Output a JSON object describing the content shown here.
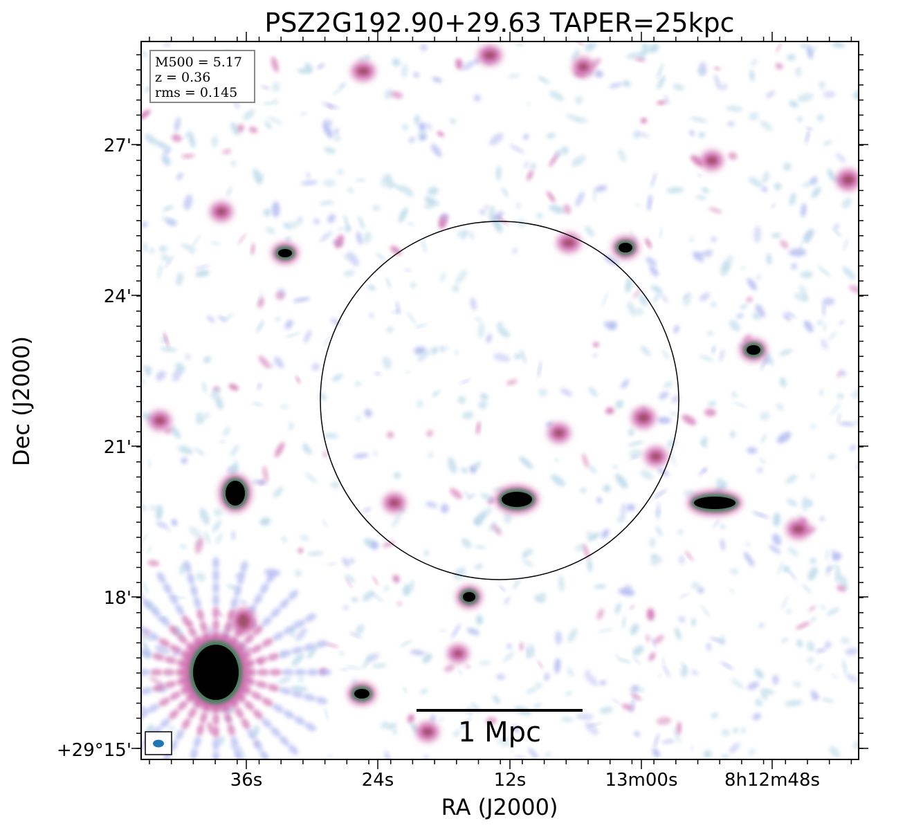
{
  "chart_data": {
    "type": "heatmap",
    "title": "PSZ2G192.90+29.63 TAPER=25kpc",
    "xlabel": "RA (J2000)",
    "ylabel": "Dec (J2000)",
    "x_ticks": [
      "36s",
      "24s",
      "12s",
      "13m00s",
      "8h12m48s"
    ],
    "y_ticks": [
      "+29°15'",
      "18'",
      "21'",
      "24'",
      "27'"
    ],
    "info_box": {
      "m500": "M500 = 5.17",
      "z": "z = 0.36",
      "rms": "rms = 0.145"
    },
    "scale_bar_label": "1 Mpc",
    "colors": {
      "faint": "#b8d8e8",
      "low": "#b0b8f0",
      "mid": "#d070b0",
      "high": "#40805a",
      "peak": "#000000",
      "beam": "#1f77b4"
    }
  }
}
